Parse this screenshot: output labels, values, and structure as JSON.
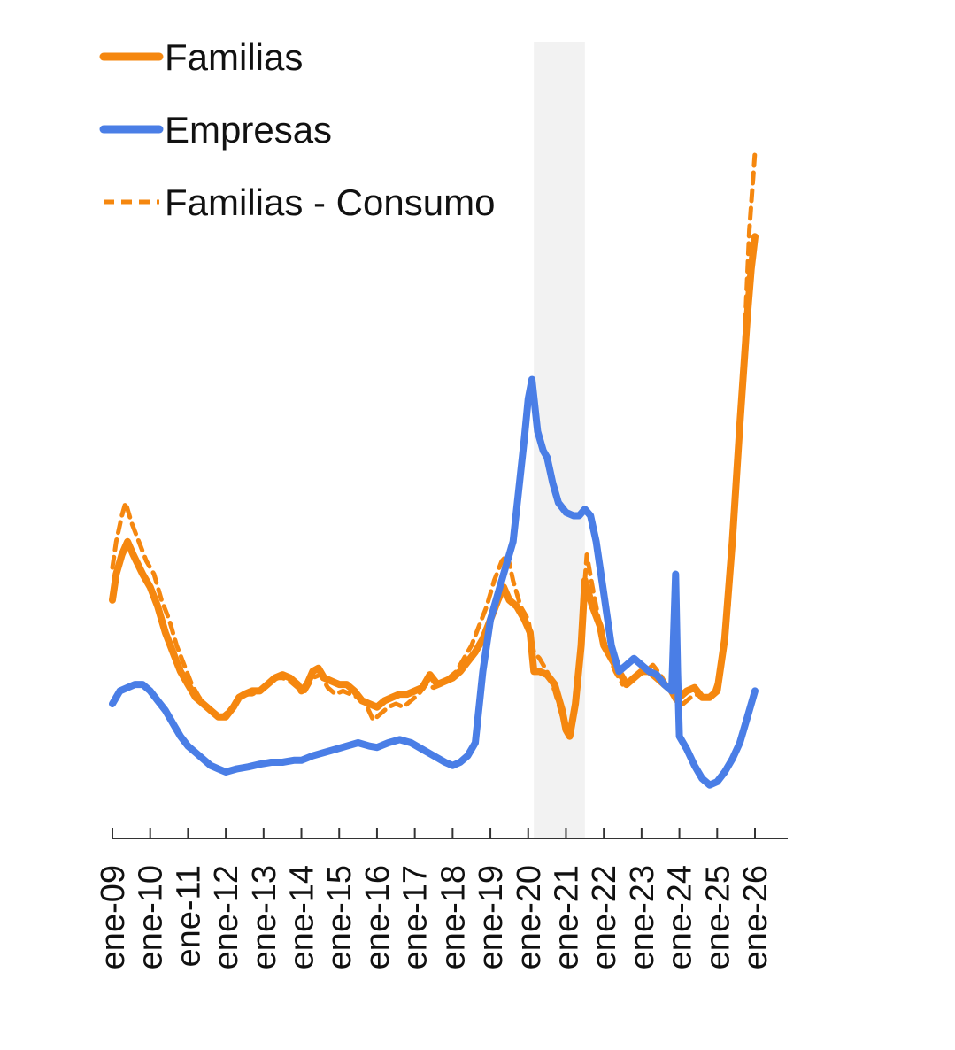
{
  "chart_data": {
    "type": "line",
    "title": "",
    "xlabel": "",
    "ylabel": "",
    "x_range": [
      2009.0,
      2026.0
    ],
    "y_range": [
      0,
      100
    ],
    "y_axis_labels_shown": false,
    "grid": false,
    "legend_position": "top-left",
    "shaded_period": {
      "from": 2020.15,
      "to": 2021.5,
      "color": "#f2f2f2"
    },
    "tick_labels": [
      "ene-09",
      "ene-10",
      "ene-11",
      "ene-12",
      "ene-13",
      "ene-14",
      "ene-15",
      "ene-16",
      "ene-17",
      "ene-18",
      "ene-19",
      "ene-20",
      "ene-21",
      "ene-22",
      "ene-23",
      "ene-24",
      "ene-25",
      "ene-26"
    ],
    "series": [
      {
        "name": "Familias",
        "color": "#f5870f",
        "dash": "solid",
        "points": [
          [
            2009.0,
            31
          ],
          [
            2009.1,
            35
          ],
          [
            2009.25,
            38
          ],
          [
            2009.4,
            40
          ],
          [
            2009.55,
            38
          ],
          [
            2009.8,
            35
          ],
          [
            2010.0,
            33
          ],
          [
            2010.2,
            30
          ],
          [
            2010.4,
            26
          ],
          [
            2010.6,
            23
          ],
          [
            2010.8,
            20
          ],
          [
            2011.0,
            18
          ],
          [
            2011.2,
            16
          ],
          [
            2011.4,
            15
          ],
          [
            2011.6,
            14
          ],
          [
            2011.8,
            13
          ],
          [
            2012.0,
            13
          ],
          [
            2012.2,
            14.5
          ],
          [
            2012.35,
            16
          ],
          [
            2012.5,
            16.5
          ],
          [
            2012.7,
            17
          ],
          [
            2012.9,
            17
          ],
          [
            2013.1,
            18
          ],
          [
            2013.3,
            19
          ],
          [
            2013.5,
            19.5
          ],
          [
            2013.7,
            19
          ],
          [
            2013.9,
            18
          ],
          [
            2014.0,
            17
          ],
          [
            2014.15,
            18
          ],
          [
            2014.3,
            20
          ],
          [
            2014.45,
            20.5
          ],
          [
            2014.6,
            19
          ],
          [
            2014.8,
            18.5
          ],
          [
            2015.0,
            18
          ],
          [
            2015.2,
            18
          ],
          [
            2015.4,
            17
          ],
          [
            2015.6,
            15.5
          ],
          [
            2015.8,
            15
          ],
          [
            2016.0,
            14.5
          ],
          [
            2016.2,
            15.5
          ],
          [
            2016.4,
            16
          ],
          [
            2016.6,
            16.5
          ],
          [
            2016.8,
            16.5
          ],
          [
            2017.0,
            17
          ],
          [
            2017.2,
            17.5
          ],
          [
            2017.4,
            19.5
          ],
          [
            2017.6,
            18
          ],
          [
            2017.8,
            18.5
          ],
          [
            2018.0,
            19
          ],
          [
            2018.2,
            20
          ],
          [
            2018.4,
            21.5
          ],
          [
            2018.6,
            23
          ],
          [
            2018.8,
            25
          ],
          [
            2019.0,
            28
          ],
          [
            2019.2,
            31
          ],
          [
            2019.35,
            33
          ],
          [
            2019.5,
            31
          ],
          [
            2019.7,
            30
          ],
          [
            2019.9,
            28
          ],
          [
            2020.05,
            26
          ],
          [
            2020.15,
            20
          ],
          [
            2020.3,
            20
          ],
          [
            2020.5,
            19.5
          ],
          [
            2020.7,
            18
          ],
          [
            2020.9,
            14
          ],
          [
            2021.0,
            11
          ],
          [
            2021.1,
            10
          ],
          [
            2021.25,
            15
          ],
          [
            2021.4,
            24
          ],
          [
            2021.5,
            34
          ],
          [
            2021.55,
            33
          ],
          [
            2021.7,
            30
          ],
          [
            2021.9,
            27
          ],
          [
            2022.0,
            24
          ],
          [
            2022.2,
            22
          ],
          [
            2022.4,
            20
          ],
          [
            2022.6,
            18
          ],
          [
            2022.8,
            19
          ],
          [
            2023.0,
            20
          ],
          [
            2023.2,
            20
          ],
          [
            2023.4,
            19
          ],
          [
            2023.6,
            18
          ],
          [
            2023.8,
            17
          ],
          [
            2024.0,
            16
          ],
          [
            2024.2,
            17
          ],
          [
            2024.4,
            17.5
          ],
          [
            2024.6,
            16
          ],
          [
            2024.8,
            16
          ],
          [
            2025.0,
            17
          ],
          [
            2025.2,
            25
          ],
          [
            2025.4,
            40
          ],
          [
            2025.6,
            58
          ],
          [
            2025.8,
            75
          ],
          [
            2025.9,
            82
          ],
          [
            2026.0,
            87
          ]
        ]
      },
      {
        "name": "Empresas",
        "color": "#4a7ee6",
        "dash": "solid",
        "points": [
          [
            2009.0,
            15
          ],
          [
            2009.2,
            17
          ],
          [
            2009.4,
            17.5
          ],
          [
            2009.6,
            18
          ],
          [
            2009.8,
            18
          ],
          [
            2010.0,
            17
          ],
          [
            2010.2,
            15.5
          ],
          [
            2010.4,
            14
          ],
          [
            2010.6,
            12
          ],
          [
            2010.8,
            10
          ],
          [
            2011.0,
            8.5
          ],
          [
            2011.2,
            7.5
          ],
          [
            2011.4,
            6.5
          ],
          [
            2011.6,
            5.5
          ],
          [
            2011.8,
            5
          ],
          [
            2012.0,
            4.5
          ],
          [
            2012.3,
            5
          ],
          [
            2012.6,
            5.3
          ],
          [
            2012.9,
            5.7
          ],
          [
            2013.2,
            6
          ],
          [
            2013.5,
            6
          ],
          [
            2013.8,
            6.3
          ],
          [
            2014.0,
            6.3
          ],
          [
            2014.3,
            7
          ],
          [
            2014.6,
            7.5
          ],
          [
            2014.9,
            8
          ],
          [
            2015.2,
            8.5
          ],
          [
            2015.5,
            9
          ],
          [
            2015.8,
            8.5
          ],
          [
            2016.0,
            8.3
          ],
          [
            2016.3,
            9
          ],
          [
            2016.6,
            9.5
          ],
          [
            2016.9,
            9
          ],
          [
            2017.2,
            8
          ],
          [
            2017.5,
            7
          ],
          [
            2017.8,
            6
          ],
          [
            2018.0,
            5.5
          ],
          [
            2018.2,
            6
          ],
          [
            2018.4,
            7
          ],
          [
            2018.6,
            9
          ],
          [
            2018.8,
            20
          ],
          [
            2019.0,
            28
          ],
          [
            2019.2,
            32
          ],
          [
            2019.4,
            36
          ],
          [
            2019.6,
            40
          ],
          [
            2019.75,
            48
          ],
          [
            2019.9,
            56
          ],
          [
            2020.0,
            62
          ],
          [
            2020.1,
            65
          ],
          [
            2020.25,
            57
          ],
          [
            2020.4,
            54
          ],
          [
            2020.5,
            53
          ],
          [
            2020.65,
            49
          ],
          [
            2020.8,
            46
          ],
          [
            2021.0,
            44.5
          ],
          [
            2021.2,
            44
          ],
          [
            2021.35,
            44
          ],
          [
            2021.5,
            45
          ],
          [
            2021.65,
            44
          ],
          [
            2021.8,
            40
          ],
          [
            2022.0,
            32
          ],
          [
            2022.2,
            24
          ],
          [
            2022.4,
            20
          ],
          [
            2022.6,
            21
          ],
          [
            2022.8,
            22
          ],
          [
            2023.0,
            21
          ],
          [
            2023.2,
            20
          ],
          [
            2023.4,
            19.5
          ],
          [
            2023.6,
            18
          ],
          [
            2023.8,
            17
          ],
          [
            2023.9,
            35
          ],
          [
            2023.95,
            20
          ],
          [
            2024.0,
            10
          ],
          [
            2024.2,
            8
          ],
          [
            2024.4,
            5.5
          ],
          [
            2024.6,
            3.5
          ],
          [
            2024.8,
            2.5
          ],
          [
            2025.0,
            3
          ],
          [
            2025.2,
            4.5
          ],
          [
            2025.4,
            6.5
          ],
          [
            2025.6,
            9
          ],
          [
            2025.8,
            13
          ],
          [
            2026.0,
            17
          ]
        ]
      },
      {
        "name": "Familias - Consumo",
        "color": "#f5870f",
        "dash": "dashed",
        "points": [
          [
            2009.0,
            36
          ],
          [
            2009.1,
            40
          ],
          [
            2009.25,
            44
          ],
          [
            2009.35,
            46
          ],
          [
            2009.5,
            43
          ],
          [
            2009.7,
            40
          ],
          [
            2009.9,
            37
          ],
          [
            2010.1,
            35
          ],
          [
            2010.3,
            31
          ],
          [
            2010.5,
            28
          ],
          [
            2010.7,
            24
          ],
          [
            2010.9,
            21
          ],
          [
            2011.1,
            18
          ],
          [
            2011.3,
            16
          ],
          [
            2011.5,
            14.5
          ],
          [
            2011.7,
            13.5
          ],
          [
            2011.9,
            13
          ],
          [
            2012.1,
            14
          ],
          [
            2012.3,
            15.5
          ],
          [
            2012.5,
            16.5
          ],
          [
            2012.7,
            16.5
          ],
          [
            2012.9,
            17
          ],
          [
            2013.1,
            18
          ],
          [
            2013.3,
            19
          ],
          [
            2013.5,
            19
          ],
          [
            2013.7,
            18.5
          ],
          [
            2013.9,
            17.5
          ],
          [
            2014.1,
            17
          ],
          [
            2014.3,
            19
          ],
          [
            2014.5,
            19.5
          ],
          [
            2014.7,
            17.5
          ],
          [
            2014.9,
            16.5
          ],
          [
            2015.1,
            17
          ],
          [
            2015.3,
            16.5
          ],
          [
            2015.5,
            16
          ],
          [
            2015.7,
            15
          ],
          [
            2015.9,
            12.5
          ],
          [
            2016.1,
            13.5
          ],
          [
            2016.3,
            14.5
          ],
          [
            2016.5,
            15
          ],
          [
            2016.7,
            14.5
          ],
          [
            2016.9,
            15.5
          ],
          [
            2017.1,
            16.5
          ],
          [
            2017.3,
            18
          ],
          [
            2017.5,
            17.5
          ],
          [
            2017.7,
            18
          ],
          [
            2017.9,
            19
          ],
          [
            2018.1,
            20
          ],
          [
            2018.3,
            22
          ],
          [
            2018.5,
            24
          ],
          [
            2018.7,
            27
          ],
          [
            2018.9,
            30
          ],
          [
            2019.1,
            34
          ],
          [
            2019.3,
            37
          ],
          [
            2019.45,
            38
          ],
          [
            2019.6,
            34
          ],
          [
            2019.8,
            30
          ],
          [
            2020.0,
            28
          ],
          [
            2020.15,
            23
          ],
          [
            2020.3,
            22
          ],
          [
            2020.5,
            20
          ],
          [
            2020.7,
            17
          ],
          [
            2020.9,
            13
          ],
          [
            2021.0,
            11
          ],
          [
            2021.15,
            12
          ],
          [
            2021.3,
            18
          ],
          [
            2021.45,
            30
          ],
          [
            2021.55,
            38
          ],
          [
            2021.7,
            33
          ],
          [
            2021.9,
            27
          ],
          [
            2022.1,
            23
          ],
          [
            2022.3,
            20
          ],
          [
            2022.5,
            18
          ],
          [
            2022.7,
            18.5
          ],
          [
            2022.9,
            19.5
          ],
          [
            2023.1,
            20
          ],
          [
            2023.3,
            21
          ],
          [
            2023.5,
            19.5
          ],
          [
            2023.7,
            17.5
          ],
          [
            2023.9,
            15.5
          ],
          [
            2024.1,
            15
          ],
          [
            2024.3,
            16
          ],
          [
            2024.5,
            16.5
          ],
          [
            2024.7,
            16
          ],
          [
            2024.9,
            16.5
          ],
          [
            2025.1,
            20
          ],
          [
            2025.3,
            30
          ],
          [
            2025.5,
            50
          ],
          [
            2025.7,
            68
          ],
          [
            2025.85,
            88
          ],
          [
            2026.0,
            100
          ]
        ]
      }
    ]
  }
}
